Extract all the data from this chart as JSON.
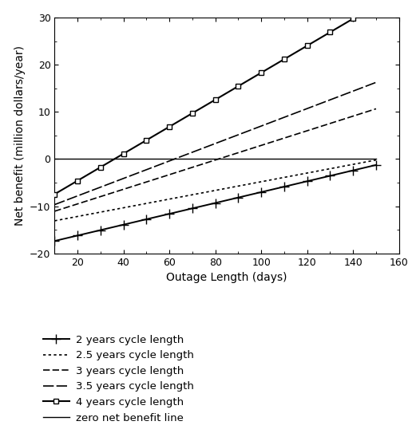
{
  "title": "",
  "xlabel": "Outage Length (days)",
  "ylabel": "Net benefit (million dollars/year)",
  "xlim": [
    10,
    160
  ],
  "ylim": [
    -20,
    30
  ],
  "xticks": [
    20,
    40,
    60,
    80,
    100,
    120,
    140,
    160
  ],
  "yticks": [
    -20,
    -10,
    0,
    10,
    20,
    30
  ],
  "x_start": 10,
  "x_end": 150,
  "lines": [
    {
      "label": "2 years cycle length",
      "slope": 0.115,
      "intercept": -18.5,
      "marker": "+"
    },
    {
      "label": "2.5 years cycle length",
      "slope": 0.092,
      "intercept": -14.0,
      "marker": null
    },
    {
      "label": "3 years cycle length",
      "slope": 0.155,
      "intercept": -12.6,
      "marker": null
    },
    {
      "label": "3.5 years cycle length",
      "slope": 0.185,
      "intercept": -11.5,
      "marker": null
    },
    {
      "label": "4 years cycle length",
      "slope": 0.286,
      "intercept": -10.3,
      "marker": "s"
    },
    {
      "label": "zero net benefit line",
      "slope": 0.0,
      "intercept": 0.0,
      "marker": null
    }
  ],
  "legend_labels": [
    "2 years cycle length",
    "2.5 years cycle length",
    "3 years cycle length",
    "3.5 years cycle length",
    "4 years cycle length",
    "zero net benefit line"
  ],
  "background_color": "white"
}
